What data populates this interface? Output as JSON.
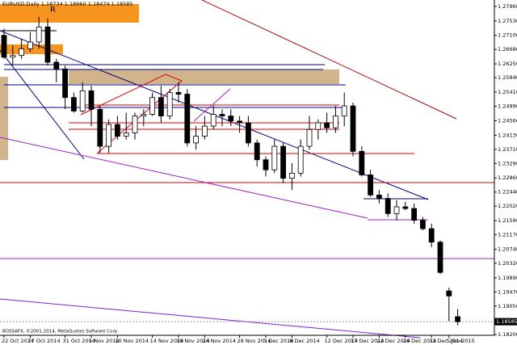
{
  "chart_data": {
    "type": "candlestick",
    "title": "EURUSD,Daily  1.18734 1.18960 1.18474 1.18585",
    "watermark": "BOSSAFX, ©2001-2014, MetaQuotes Software Corp.",
    "annotation": "R",
    "categories": [
      "22 Oct 2014",
      null,
      null,
      "27 Oct 2014",
      null,
      null,
      null,
      "31 Oct 2014",
      null,
      null,
      "5 Nov 2014",
      null,
      null,
      "10 Nov 2014",
      null,
      null,
      null,
      "14 Nov 2014",
      null,
      null,
      "19 Nov 2014",
      null,
      null,
      "24 Nov 2014",
      null,
      null,
      null,
      "28 Nov 2014",
      null,
      null,
      "3 Dec 2014",
      null,
      null,
      "8 Dec 2014",
      null,
      null,
      null,
      "12 Dec 2014",
      null,
      null,
      "17 Dec 2014",
      null,
      null,
      "22 Dec 2014",
      null,
      null,
      "26 Dec 2014",
      null,
      null,
      "31 Dec 2014",
      null,
      "5 Jan 2015",
      null
    ],
    "open": [
      1.271,
      1.2645,
      1.265,
      1.267,
      1.269,
      1.2735,
      1.263,
      1.261,
      1.2525,
      1.2485,
      1.2545,
      1.249,
      1.238,
      1.2445,
      1.241,
      1.242,
      1.247,
      1.2475,
      1.2525,
      1.247,
      1.254,
      1.2535,
      1.239,
      1.241,
      1.244,
      1.2475,
      1.247,
      1.2455,
      1.245,
      1.239,
      1.234,
      1.231,
      1.238,
      1.2285,
      1.23,
      1.238,
      1.243,
      1.245,
      1.2435,
      1.247,
      1.25,
      1.2365,
      1.2295,
      1.2235,
      1.2225,
      1.218,
      1.22,
      1.2195,
      1.216,
      1.2135,
      1.2095,
      1.195,
      1.18734
    ],
    "high": [
      1.273,
      1.268,
      1.27,
      1.272,
      1.2765,
      1.276,
      1.264,
      1.262,
      1.254,
      1.257,
      1.256,
      1.25,
      1.246,
      1.247,
      1.248,
      1.248,
      1.249,
      1.254,
      1.256,
      1.255,
      1.257,
      1.255,
      1.244,
      1.247,
      1.25,
      1.249,
      1.249,
      1.247,
      1.247,
      1.24,
      1.235,
      1.24,
      1.239,
      1.233,
      1.24,
      1.247,
      1.246,
      1.248,
      1.25,
      1.254,
      1.251,
      1.238,
      1.231,
      1.225,
      1.224,
      1.222,
      1.2215,
      1.221,
      1.217,
      1.215,
      1.21,
      1.196,
      1.1896
    ],
    "low": [
      1.264,
      1.262,
      1.264,
      1.266,
      1.267,
      1.262,
      1.257,
      1.249,
      1.248,
      1.248,
      1.244,
      1.236,
      1.236,
      1.24,
      1.24,
      1.24,
      1.244,
      1.247,
      1.245,
      1.246,
      1.251,
      1.238,
      1.237,
      1.24,
      1.243,
      1.244,
      1.244,
      1.242,
      1.238,
      1.232,
      1.229,
      1.23,
      1.227,
      1.225,
      1.229,
      1.237,
      1.24,
      1.242,
      1.242,
      1.244,
      1.235,
      1.229,
      1.223,
      1.221,
      1.217,
      1.216,
      1.219,
      1.215,
      1.213,
      1.208,
      1.2,
      1.186,
      1.18474
    ],
    "close": [
      1.2645,
      1.265,
      1.267,
      1.269,
      1.2735,
      1.263,
      1.261,
      1.2525,
      1.2485,
      1.2545,
      1.249,
      1.238,
      1.2445,
      1.241,
      1.242,
      1.247,
      1.2475,
      1.2525,
      1.247,
      1.254,
      1.2535,
      1.239,
      1.241,
      1.244,
      1.2475,
      1.247,
      1.2455,
      1.245,
      1.239,
      1.234,
      1.231,
      1.238,
      1.2285,
      1.23,
      1.238,
      1.243,
      1.245,
      1.2435,
      1.247,
      1.25,
      1.2365,
      1.2295,
      1.2235,
      1.2225,
      1.218,
      1.22,
      1.2195,
      1.216,
      1.2135,
      1.2095,
      1.2005,
      1.1935,
      1.18585
    ],
    "up_color": "#ffffff",
    "down_color": "#000000",
    "outline_color": "#000000",
    "ylim": [
      1.1818,
      1.2815
    ],
    "yticks": [
      {
        "value": 1.2796,
        "label": "1.27960"
      },
      {
        "value": 1.2753,
        "label": "1.27530"
      },
      {
        "value": 1.271,
        "label": "1.27100"
      },
      {
        "value": 1.2668,
        "label": "1.26680"
      },
      {
        "value": 1.2625,
        "label": "1.26250"
      },
      {
        "value": 1.2584,
        "label": "1.25840"
      },
      {
        "value": 1.2541,
        "label": "1.25410"
      },
      {
        "value": 1.2499,
        "label": "1.24990"
      },
      {
        "value": 1.2456,
        "label": "1.24560"
      },
      {
        "value": 1.2413,
        "label": "1.24130"
      },
      {
        "value": 1.2371,
        "label": "1.23710"
      },
      {
        "value": 1.2329,
        "label": "1.23290"
      },
      {
        "value": 1.2286,
        "label": "1.22860"
      },
      {
        "value": 1.2244,
        "label": "1.22440"
      },
      {
        "value": 1.2202,
        "label": "1.22020"
      },
      {
        "value": 1.2159,
        "label": "1.21590"
      },
      {
        "value": 1.2117,
        "label": "1.21170"
      },
      {
        "value": 1.2074,
        "label": "1.20740"
      },
      {
        "value": 1.2032,
        "label": "1.20320"
      },
      {
        "value": 1.1989,
        "label": "1.19890"
      },
      {
        "value": 1.1947,
        "label": "1.19470"
      },
      {
        "value": 1.1905,
        "label": "1.19050"
      },
      {
        "value": 1.182,
        "label": "1.18200"
      }
    ],
    "current_price": {
      "value": 1.18585,
      "label": "1.18585"
    },
    "grid": false
  }
}
